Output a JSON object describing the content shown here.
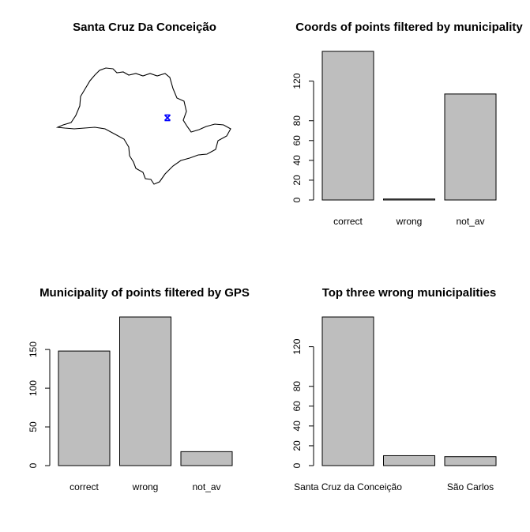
{
  "panels": [
    {
      "type": "map",
      "title": "Santa Cruz Da Conceição",
      "marker_color": "#0000ff",
      "marker_symbol": "x"
    }
  ],
  "chart_data": [
    {
      "type": "bar",
      "title": "Coords of points filtered by municipality",
      "categories": [
        "correct",
        "wrong",
        "not_av"
      ],
      "values": [
        150,
        1,
        107
      ],
      "ylim": [
        0,
        150
      ],
      "yticks": [
        0,
        20,
        40,
        60,
        80,
        120
      ],
      "bar_color": "#bebebe"
    },
    {
      "type": "bar",
      "title": "Municipality of points filtered by GPS",
      "categories": [
        "correct",
        "wrong",
        "not_av"
      ],
      "values": [
        148,
        192,
        18
      ],
      "ylim": [
        0,
        192
      ],
      "yticks": [
        0,
        50,
        100,
        150
      ],
      "bar_color": "#bebebe"
    },
    {
      "type": "bar",
      "title": "Top three wrong municipalities",
      "categories": [
        "Santa Cruz da Conceição",
        "",
        "São Carlos"
      ],
      "values": [
        150,
        10,
        9
      ],
      "ylim": [
        0,
        150
      ],
      "yticks": [
        0,
        20,
        40,
        60,
        80,
        120
      ],
      "bar_color": "#bebebe"
    }
  ]
}
